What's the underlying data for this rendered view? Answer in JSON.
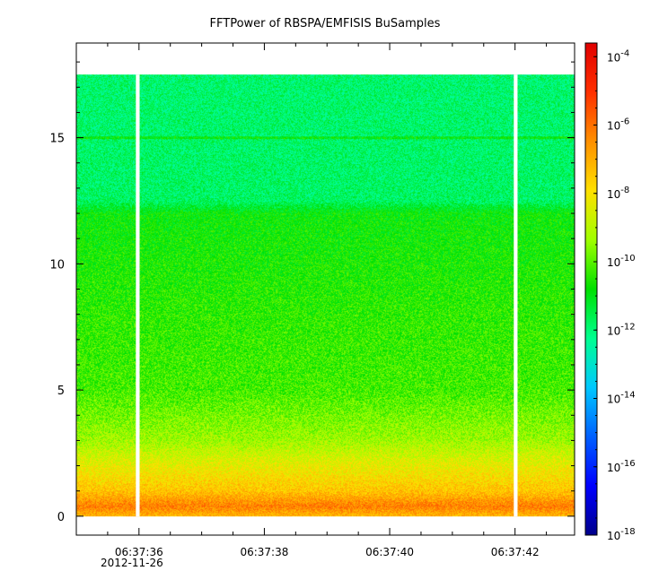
{
  "chart_data": {
    "type": "heatmap",
    "title": "FFTPower of RBSPA/EMFISIS  BuSamples",
    "xlabel": "",
    "ylabel": "",
    "x_ticks": [
      {
        "label": "06:37:36",
        "seconds": 36
      },
      {
        "label": "06:37:38",
        "seconds": 38
      },
      {
        "label": "06:37:40",
        "seconds": 40
      },
      {
        "label": "06:37:42",
        "seconds": 42
      }
    ],
    "x_date_label": "2012-11-26",
    "x_range_seconds": [
      35.0,
      42.95
    ],
    "y_range": [
      -0.75,
      18.75
    ],
    "y_ticks": [
      0,
      5,
      10,
      15
    ],
    "data_y_range": [
      0,
      17.5
    ],
    "data_gaps_seconds": [
      [
        35.95,
        36.01
      ],
      [
        41.98,
        42.04
      ]
    ],
    "line_feature_y": 15,
    "colorbar": {
      "scale": "log",
      "range_exponents": [
        -18,
        -3.6
      ],
      "tick_exponents": [
        -18,
        -16,
        -14,
        -12,
        -10,
        -8,
        -6,
        -4
      ],
      "tick_base": "10",
      "colors": [
        "#00008b",
        "#0000ff",
        "#0060ff",
        "#00c8ff",
        "#00ff90",
        "#00e000",
        "#a0ff00",
        "#ffe000",
        "#ff9000",
        "#ff3000",
        "#e00000"
      ]
    },
    "spectrum_profile": [
      {
        "y": 0.0,
        "log10": -7.2
      },
      {
        "y": 0.4,
        "log10": -6.2
      },
      {
        "y": 1.0,
        "log10": -7.4
      },
      {
        "y": 2.0,
        "log10": -8.3
      },
      {
        "y": 3.0,
        "log10": -9.3
      },
      {
        "y": 5.0,
        "log10": -10.2
      },
      {
        "y": 8.0,
        "log10": -10.4
      },
      {
        "y": 12.0,
        "log10": -10.8
      },
      {
        "y": 12.5,
        "log10": -11.8
      },
      {
        "y": 17.5,
        "log10": -11.9
      }
    ]
  }
}
